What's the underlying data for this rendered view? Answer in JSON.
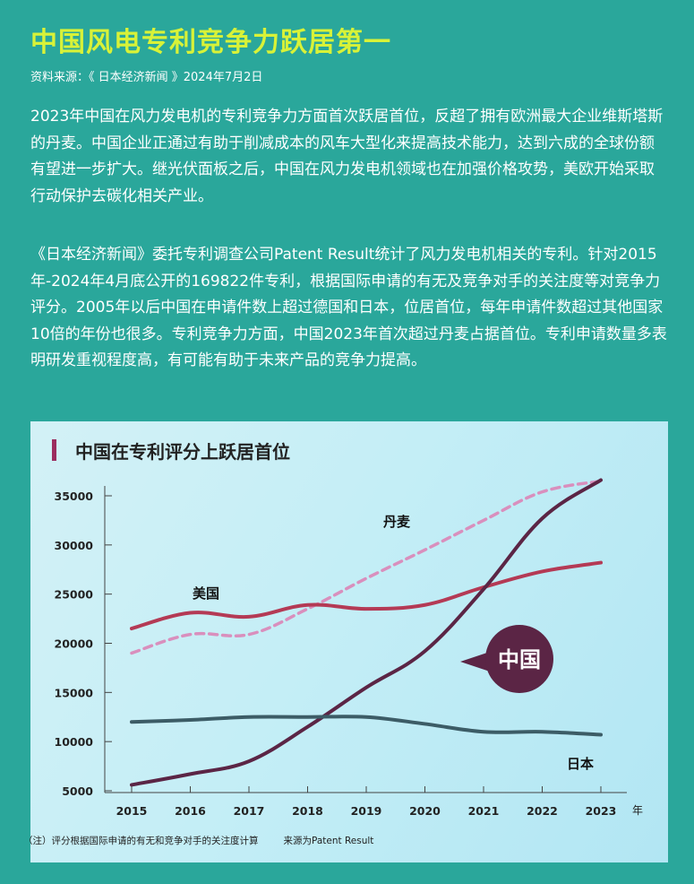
{
  "header": {
    "title": "中国风电专利竞争力跃居第一",
    "source": "资料来源：《 日本经济新闻 》2024年7月2日"
  },
  "article": {
    "paragraphs": [
      "2023年中国在风力发电机的专利竞争力方面首次跃居首位，反超了拥有欧洲最大企业维斯塔斯的丹麦。中国企业正通过有助于削减成本的风车大型化来提高技术能力，达到六成的全球份额有望进一步扩大。继光伏面板之后，中国在风力发电机领域也在加强价格攻势，美欧开始采取行动保护去碳化相关产业。",
      "《日本经济新闻》委托专利调查公司Patent Result统计了风力发电机相关的专利。针对2015年-2024年4月底公开的169822件专利，根据国际申请的有无及竞争对手的关注度等对竞争力评分。2005年以后中国在申请件数上超过德国和日本，位居首位，每年申请件数超过其他国家10倍的年份也很多。专利竞争力方面，中国2023年首次超过丹麦占据首位。专利申请数量多表明研发重视程度高，有可能有助于未来产品的竞争力提高。"
    ]
  },
  "chart_data": {
    "type": "line",
    "title": "中国在专利评分上跃居首位",
    "x": [
      2015,
      2016,
      2017,
      2018,
      2019,
      2020,
      2021,
      2022,
      2023
    ],
    "x_unit": "年",
    "yticks": [
      5000,
      10000,
      15000,
      20000,
      25000,
      30000,
      35000
    ],
    "ylim": [
      5000,
      36600
    ],
    "grid": false,
    "series": [
      {
        "name": "丹麦",
        "color": "#d98fbd",
        "dashed": true,
        "values": [
          19000,
          20900,
          20900,
          23500,
          26600,
          29500,
          32500,
          35400,
          36500
        ]
      },
      {
        "name": "美国",
        "color": "#b43a55",
        "dashed": false,
        "values": [
          21500,
          23100,
          22700,
          23900,
          23500,
          23900,
          25700,
          27300,
          28200
        ]
      },
      {
        "name": "中国",
        "color": "#5b2545",
        "dashed": false,
        "callout": true,
        "values": [
          5600,
          6700,
          8000,
          11500,
          15500,
          19200,
          25500,
          32700,
          36600
        ]
      },
      {
        "name": "日本",
        "color": "#3c5c66",
        "dashed": false,
        "values": [
          12000,
          12200,
          12500,
          12500,
          12500,
          11800,
          11000,
          11000,
          10700
        ]
      }
    ],
    "footnote": "（注）评分根据国际申请的有无和竞争对手的关注度计算",
    "footnote_source": "来源为Patent Result"
  }
}
